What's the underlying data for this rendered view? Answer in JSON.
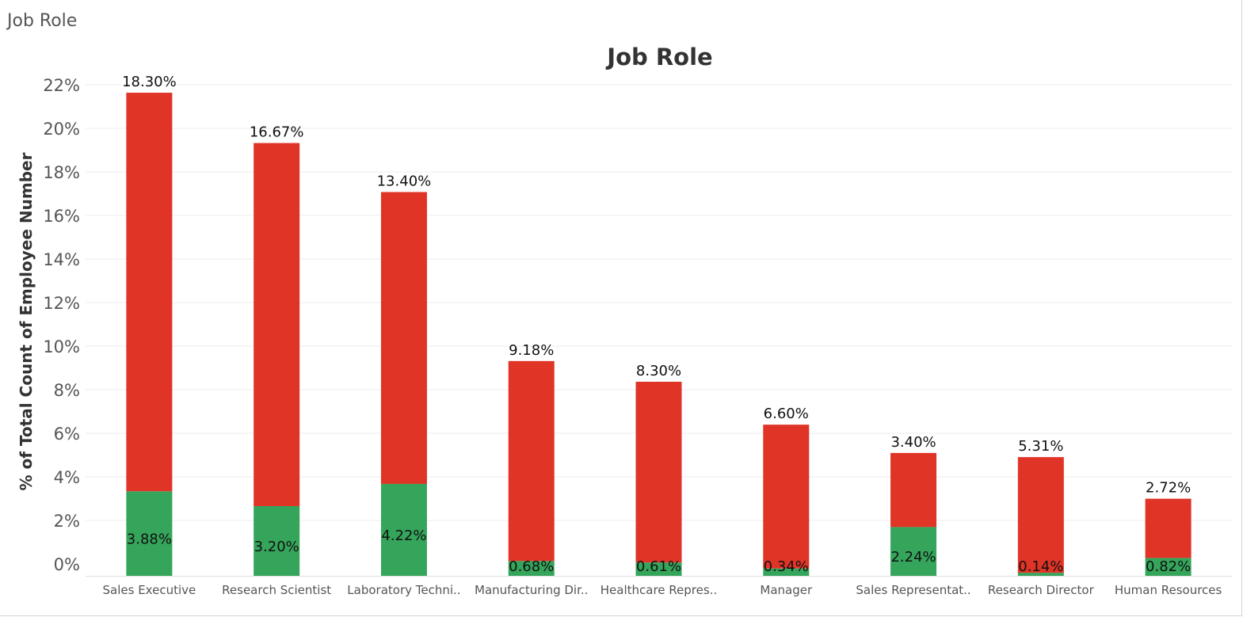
{
  "sheet_title": "Job Role",
  "colors": {
    "top": "#e03427",
    "bottom": "#35a55b",
    "grid": "#ececec",
    "axis_text": "#555555",
    "label_text": "#111111"
  },
  "chart_data": {
    "type": "bar",
    "stacked": true,
    "title": "Job Role",
    "ylabel": "% of Total Count of Employee Number",
    "xlabel": "",
    "y_ticks": [
      "0%",
      "2%",
      "4%",
      "6%",
      "8%",
      "10%",
      "12%",
      "14%",
      "16%",
      "18%",
      "20%",
      "22%"
    ],
    "grid": true,
    "categories": [
      "Sales Executive",
      "Research Scientist",
      "Laboratory Techni..",
      "Manufacturing Dir..",
      "Healthcare Repres..",
      "Manager",
      "Sales Representat..",
      "Research Director",
      "Human Resources"
    ],
    "series": [
      {
        "values": [
          3.88,
          3.2,
          4.22,
          0.68,
          0.61,
          0.34,
          2.24,
          0.14,
          0.82
        ],
        "labels": [
          "3.88%",
          "3.20%",
          "4.22%",
          "0.68%",
          "0.61%",
          "0.34%",
          "2.24%",
          "0.14%",
          "0.82%"
        ]
      },
      {
        "values": [
          18.3,
          16.67,
          13.4,
          9.18,
          8.3,
          6.6,
          3.4,
          5.31,
          2.72
        ],
        "labels": [
          "18.30%",
          "16.67%",
          "13.40%",
          "9.18%",
          "8.30%",
          "6.60%",
          "3.40%",
          "5.31%",
          "2.72%"
        ]
      }
    ]
  }
}
